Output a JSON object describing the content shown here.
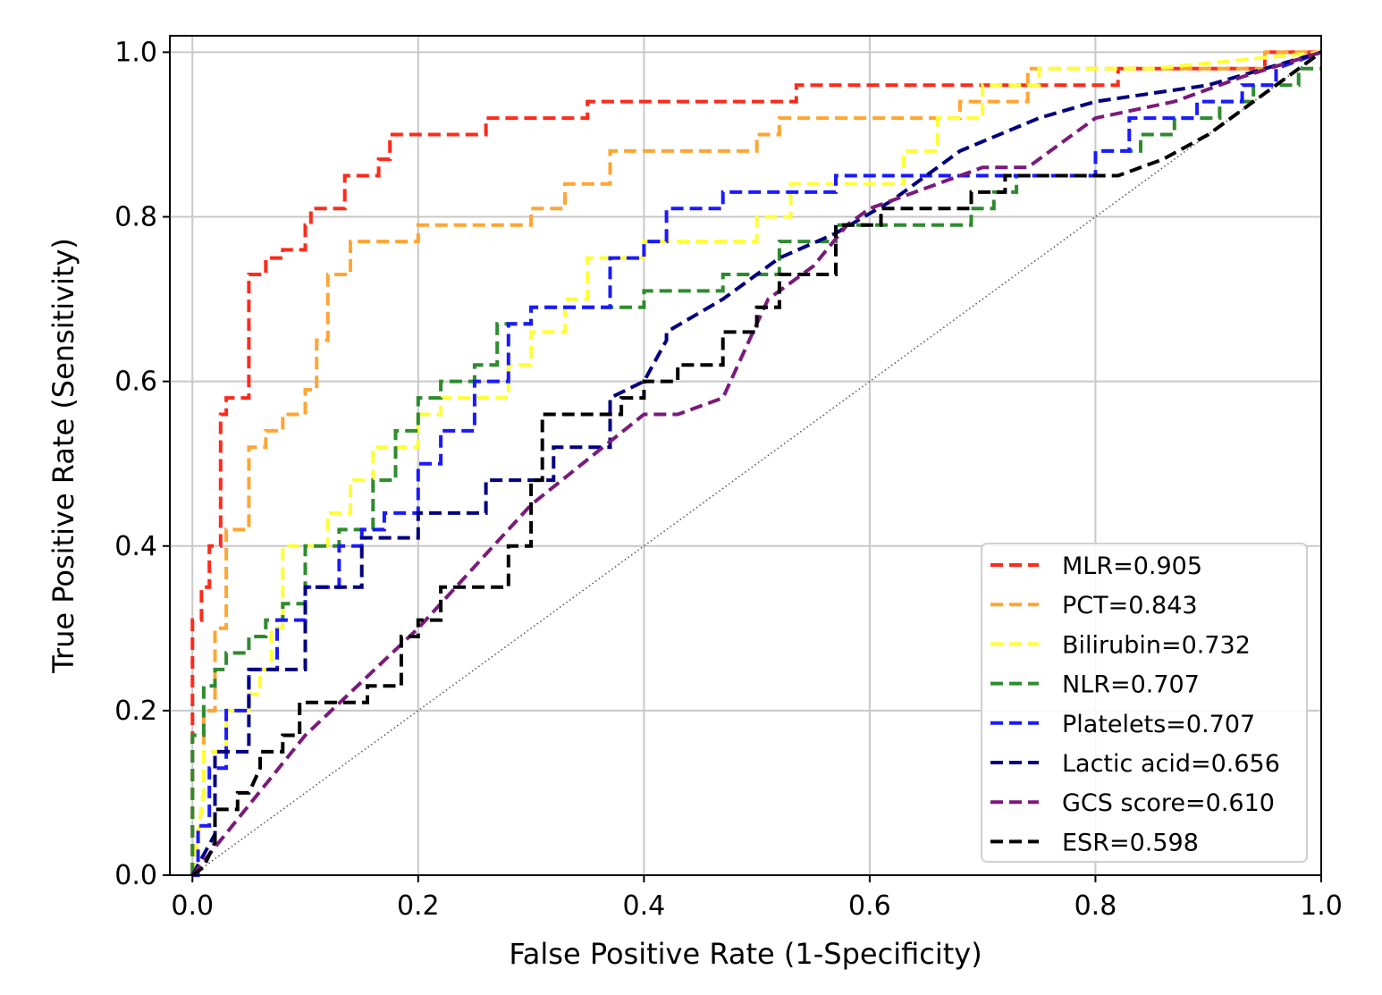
{
  "chart_data": {
    "type": "line",
    "title": "",
    "xlabel": "False Positive Rate (1-Specificity)",
    "ylabel": "True Positive Rate (Sensitivity)",
    "xlim": [
      -0.02,
      1.0
    ],
    "ylim": [
      0.0,
      1.02
    ],
    "xticks": [
      0.0,
      0.2,
      0.4,
      0.6,
      0.8,
      1.0
    ],
    "yticks": [
      0.0,
      0.2,
      0.4,
      0.6,
      0.8,
      1.0
    ],
    "xtick_labels": [
      "0.0",
      "0.2",
      "0.4",
      "0.6",
      "0.8",
      "1.0"
    ],
    "ytick_labels": [
      "0.0",
      "0.2",
      "0.4",
      "0.6",
      "0.8",
      "1.0"
    ],
    "grid": true,
    "legend_position": "lower-right",
    "diagonal": {
      "style": "dotted",
      "color": "#555555",
      "x": [
        0,
        1
      ],
      "y": [
        0,
        1
      ]
    },
    "series": [
      {
        "name": "MLR=0.905",
        "color": "#ff2a1a",
        "x": [
          0,
          0,
          0.008,
          0.008,
          0.015,
          0.015,
          0.025,
          0.025,
          0.03,
          0.03,
          0.05,
          0.05,
          0.065,
          0.065,
          0.08,
          0.08,
          0.1,
          0.1,
          0.105,
          0.105,
          0.135,
          0.135,
          0.165,
          0.165,
          0.175,
          0.175,
          0.26,
          0.26,
          0.35,
          0.35,
          0.535,
          0.535,
          0.82,
          0.82,
          0.95,
          0.95,
          1.0
        ],
        "y": [
          0,
          0.31,
          0.31,
          0.35,
          0.35,
          0.4,
          0.4,
          0.56,
          0.56,
          0.58,
          0.58,
          0.73,
          0.73,
          0.75,
          0.75,
          0.76,
          0.76,
          0.79,
          0.79,
          0.81,
          0.81,
          0.85,
          0.85,
          0.87,
          0.87,
          0.9,
          0.9,
          0.92,
          0.92,
          0.94,
          0.94,
          0.96,
          0.96,
          0.98,
          0.98,
          1.0,
          1.0
        ]
      },
      {
        "name": "PCT=0.843",
        "color": "#ffa531",
        "x": [
          0,
          0.01,
          0.01,
          0.02,
          0.02,
          0.03,
          0.03,
          0.05,
          0.05,
          0.065,
          0.065,
          0.08,
          0.08,
          0.1,
          0.1,
          0.11,
          0.11,
          0.12,
          0.12,
          0.14,
          0.14,
          0.2,
          0.2,
          0.3,
          0.3,
          0.33,
          0.33,
          0.37,
          0.37,
          0.5,
          0.5,
          0.52,
          0.52,
          0.68,
          0.68,
          0.74,
          0.74,
          0.95,
          0.95,
          1.0
        ],
        "y": [
          0,
          0.1,
          0.2,
          0.2,
          0.3,
          0.3,
          0.42,
          0.42,
          0.52,
          0.52,
          0.54,
          0.54,
          0.56,
          0.56,
          0.59,
          0.59,
          0.65,
          0.65,
          0.73,
          0.73,
          0.77,
          0.77,
          0.79,
          0.79,
          0.81,
          0.81,
          0.84,
          0.84,
          0.88,
          0.88,
          0.9,
          0.9,
          0.92,
          0.92,
          0.94,
          0.94,
          0.98,
          0.98,
          1.0,
          1.0
        ]
      },
      {
        "name": "Bilirubin=0.732",
        "color": "#ffff33",
        "x": [
          0,
          0.01,
          0.01,
          0.03,
          0.03,
          0.05,
          0.05,
          0.06,
          0.06,
          0.07,
          0.07,
          0.08,
          0.08,
          0.12,
          0.12,
          0.14,
          0.14,
          0.16,
          0.16,
          0.2,
          0.2,
          0.22,
          0.22,
          0.28,
          0.28,
          0.3,
          0.3,
          0.33,
          0.33,
          0.35,
          0.35,
          0.4,
          0.4,
          0.5,
          0.5,
          0.53,
          0.53,
          0.63,
          0.63,
          0.66,
          0.66,
          0.7,
          0.7,
          0.75,
          0.75,
          0.85,
          1.0
        ],
        "y": [
          0,
          0.1,
          0.15,
          0.15,
          0.2,
          0.2,
          0.22,
          0.22,
          0.25,
          0.25,
          0.3,
          0.3,
          0.4,
          0.4,
          0.44,
          0.44,
          0.48,
          0.48,
          0.52,
          0.52,
          0.56,
          0.56,
          0.58,
          0.58,
          0.62,
          0.62,
          0.66,
          0.66,
          0.7,
          0.7,
          0.75,
          0.75,
          0.77,
          0.77,
          0.8,
          0.8,
          0.84,
          0.84,
          0.88,
          0.88,
          0.92,
          0.92,
          0.96,
          0.96,
          0.98,
          0.98,
          1.0
        ]
      },
      {
        "name": "NLR=0.707",
        "color": "#2e8b2e",
        "x": [
          0,
          0,
          0.01,
          0.01,
          0.02,
          0.02,
          0.03,
          0.03,
          0.05,
          0.05,
          0.065,
          0.065,
          0.08,
          0.08,
          0.1,
          0.1,
          0.13,
          0.13,
          0.16,
          0.16,
          0.18,
          0.18,
          0.2,
          0.2,
          0.22,
          0.22,
          0.25,
          0.25,
          0.27,
          0.27,
          0.3,
          0.3,
          0.4,
          0.4,
          0.47,
          0.47,
          0.52,
          0.52,
          0.57,
          0.57,
          0.69,
          0.69,
          0.71,
          0.71,
          0.73,
          0.73,
          0.8,
          0.8,
          0.84,
          0.84,
          0.87,
          0.87,
          0.91,
          0.91,
          0.94,
          0.94,
          0.98,
          0.98,
          1.0
        ],
        "y": [
          0,
          0.17,
          0.17,
          0.23,
          0.23,
          0.25,
          0.25,
          0.27,
          0.27,
          0.29,
          0.29,
          0.31,
          0.31,
          0.33,
          0.33,
          0.4,
          0.4,
          0.42,
          0.42,
          0.48,
          0.48,
          0.54,
          0.54,
          0.58,
          0.58,
          0.6,
          0.6,
          0.62,
          0.62,
          0.67,
          0.67,
          0.69,
          0.69,
          0.71,
          0.71,
          0.73,
          0.73,
          0.77,
          0.77,
          0.79,
          0.79,
          0.81,
          0.81,
          0.83,
          0.83,
          0.85,
          0.85,
          0.88,
          0.88,
          0.9,
          0.9,
          0.92,
          0.92,
          0.94,
          0.94,
          0.96,
          0.96,
          0.98,
          0.98
        ]
      },
      {
        "name": "Platelets=0.707",
        "color": "#1a1aff",
        "x": [
          0,
          0.005,
          0.005,
          0.015,
          0.015,
          0.03,
          0.03,
          0.05,
          0.05,
          0.075,
          0.075,
          0.1,
          0.1,
          0.13,
          0.13,
          0.15,
          0.15,
          0.17,
          0.17,
          0.2,
          0.2,
          0.22,
          0.22,
          0.25,
          0.25,
          0.28,
          0.28,
          0.3,
          0.3,
          0.37,
          0.37,
          0.4,
          0.4,
          0.42,
          0.42,
          0.47,
          0.47,
          0.57,
          0.57,
          0.8,
          0.8,
          0.83,
          0.83,
          0.89,
          0.89,
          0.93,
          0.93,
          0.96,
          0.96,
          1.0
        ],
        "y": [
          0,
          0,
          0.06,
          0.06,
          0.13,
          0.13,
          0.2,
          0.2,
          0.25,
          0.25,
          0.31,
          0.31,
          0.35,
          0.35,
          0.4,
          0.4,
          0.42,
          0.42,
          0.44,
          0.44,
          0.5,
          0.5,
          0.54,
          0.54,
          0.6,
          0.6,
          0.67,
          0.67,
          0.69,
          0.69,
          0.75,
          0.75,
          0.77,
          0.77,
          0.81,
          0.81,
          0.83,
          0.83,
          0.85,
          0.85,
          0.88,
          0.88,
          0.92,
          0.92,
          0.94,
          0.94,
          0.96,
          0.96,
          0.98,
          1.0
        ]
      },
      {
        "name": "Lactic acid=0.656",
        "color": "#00007f",
        "x": [
          0,
          0.02,
          0.02,
          0.05,
          0.05,
          0.1,
          0.1,
          0.15,
          0.15,
          0.2,
          0.2,
          0.26,
          0.26,
          0.32,
          0.32,
          0.37,
          0.37,
          0.4,
          0.42,
          0.42,
          0.47,
          0.52,
          0.57,
          0.62,
          0.68,
          0.75,
          0.8,
          0.9,
          1.0
        ],
        "y": [
          0,
          0.05,
          0.15,
          0.15,
          0.25,
          0.25,
          0.35,
          0.35,
          0.41,
          0.41,
          0.44,
          0.44,
          0.48,
          0.48,
          0.52,
          0.52,
          0.58,
          0.6,
          0.65,
          0.66,
          0.7,
          0.75,
          0.78,
          0.82,
          0.88,
          0.92,
          0.94,
          0.96,
          1.0
        ]
      },
      {
        "name": "GCS score=0.610",
        "color": "#7a1a7a",
        "x": [
          0,
          0.1,
          0.2,
          0.3,
          0.4,
          0.43,
          0.47,
          0.49,
          0.51,
          0.55,
          0.58,
          0.6,
          0.62,
          0.66,
          0.7,
          0.74,
          0.8,
          0.87,
          0.93,
          1.0
        ],
        "y": [
          0,
          0.17,
          0.3,
          0.45,
          0.56,
          0.56,
          0.58,
          0.64,
          0.7,
          0.74,
          0.79,
          0.81,
          0.82,
          0.84,
          0.86,
          0.86,
          0.92,
          0.94,
          0.97,
          1.0
        ]
      },
      {
        "name": "ESR=0.598",
        "color": "#000000",
        "x": [
          0,
          0.01,
          0.02,
          0.02,
          0.04,
          0.04,
          0.05,
          0.06,
          0.06,
          0.08,
          0.08,
          0.095,
          0.095,
          0.1,
          0.1,
          0.155,
          0.155,
          0.185,
          0.185,
          0.2,
          0.2,
          0.22,
          0.22,
          0.28,
          0.28,
          0.3,
          0.3,
          0.31,
          0.31,
          0.33,
          0.33,
          0.38,
          0.38,
          0.4,
          0.4,
          0.43,
          0.43,
          0.47,
          0.47,
          0.5,
          0.5,
          0.52,
          0.52,
          0.57,
          0.57,
          0.61,
          0.61,
          0.69,
          0.69,
          0.72,
          0.72,
          0.82,
          0.86,
          0.9,
          0.95,
          1.0
        ],
        "y": [
          0,
          0.01,
          0.04,
          0.08,
          0.08,
          0.1,
          0.1,
          0.13,
          0.15,
          0.15,
          0.17,
          0.17,
          0.21,
          0.21,
          0.21,
          0.21,
          0.23,
          0.23,
          0.29,
          0.29,
          0.31,
          0.31,
          0.35,
          0.35,
          0.4,
          0.4,
          0.48,
          0.48,
          0.56,
          0.56,
          0.56,
          0.56,
          0.58,
          0.58,
          0.6,
          0.6,
          0.62,
          0.62,
          0.66,
          0.66,
          0.69,
          0.69,
          0.73,
          0.73,
          0.79,
          0.79,
          0.81,
          0.81,
          0.83,
          0.83,
          0.85,
          0.85,
          0.87,
          0.9,
          0.95,
          1.0
        ]
      }
    ]
  }
}
